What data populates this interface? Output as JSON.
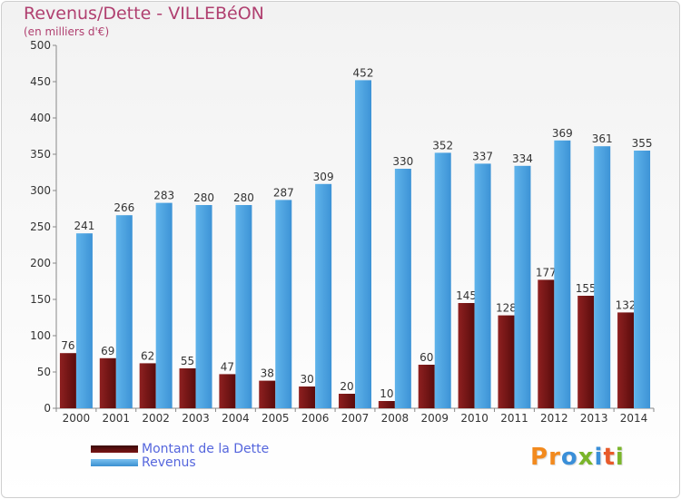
{
  "chart_data": {
    "type": "bar",
    "title": "Revenus/Dette - VILLEBéON",
    "subtitle": "(en milliers d'€)",
    "categories": [
      "2000",
      "2001",
      "2002",
      "2003",
      "2004",
      "2005",
      "2006",
      "2007",
      "2008",
      "2009",
      "2010",
      "2011",
      "2012",
      "2013",
      "2014"
    ],
    "series": [
      {
        "name": "Montant de la Dette",
        "color": "#7a1414",
        "values": [
          76,
          69,
          62,
          55,
          47,
          38,
          30,
          20,
          10,
          60,
          145,
          128,
          177,
          155,
          132
        ]
      },
      {
        "name": "Revenus",
        "color": "#4fa6e3",
        "values": [
          241,
          266,
          283,
          280,
          280,
          287,
          309,
          452,
          330,
          352,
          337,
          334,
          369,
          361,
          355
        ]
      }
    ],
    "ylim": [
      0,
      500
    ],
    "yticks": [
      0,
      50,
      100,
      150,
      200,
      250,
      300,
      350,
      400,
      450,
      500
    ],
    "xlabel": "",
    "ylabel": "",
    "grid": false,
    "legend_position": "bottom-left"
  },
  "logo": {
    "text": "Proxiti",
    "letters": [
      {
        "ch": "P",
        "color": "#f28a1e"
      },
      {
        "ch": "r",
        "color": "#f28a1e"
      },
      {
        "ch": "o",
        "color": "#3a8fd8"
      },
      {
        "ch": "x",
        "color": "#7ab52a"
      },
      {
        "ch": "i",
        "color": "#3a8fd8"
      },
      {
        "ch": "t",
        "color": "#e85a2a"
      },
      {
        "ch": "i",
        "color": "#7ab52a"
      }
    ]
  }
}
